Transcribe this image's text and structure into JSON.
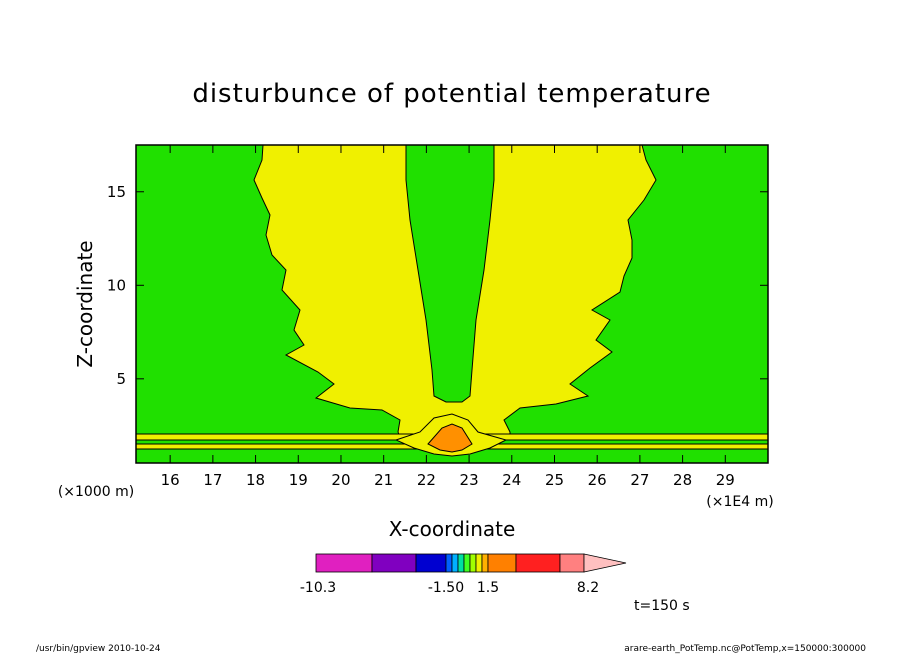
{
  "chart_data": {
    "type": "heatmap",
    "title": "disturbunce of potential temperature",
    "xlabel": "X-coordinate",
    "ylabel": "Z-coordinate",
    "x_unit_left": "(×1000 m)",
    "x_unit_right": "(×1E4 m)",
    "xlim": [
      15.2,
      30.0
    ],
    "ylim": [
      0.5,
      17.5
    ],
    "x_ticks": [
      "16",
      "17",
      "18",
      "19",
      "20",
      "21",
      "22",
      "23",
      "24",
      "25",
      "26",
      "27",
      "28",
      "29"
    ],
    "y_ticks": [
      "5",
      "10",
      "15"
    ],
    "colorbar": {
      "labels": [
        "-10.3",
        "-1.50",
        "1.5",
        "8.2"
      ],
      "colors": [
        "#e020c0",
        "#8000c0",
        "#0000d0",
        "#0060ff",
        "#00b0ff",
        "#00e0a0",
        "#40ff20",
        "#a0ff00",
        "#f0f000",
        "#ffb000",
        "#ff8000",
        "#ff2020",
        "#ff8080",
        "#ffc0c0"
      ]
    },
    "time_label": "t=150 s",
    "regions": [
      {
        "name": "background",
        "color": "#20e000"
      },
      {
        "name": "positive-band",
        "color": "#f0f000"
      },
      {
        "name": "central-column",
        "color": "#20e000"
      },
      {
        "name": "surface-peak",
        "color": "#ff9000"
      }
    ]
  },
  "footer": {
    "left": "/usr/bin/gpview   2010-10-24",
    "right": "arare-earth_PotTemp.nc@PotTemp,x=150000:300000"
  }
}
